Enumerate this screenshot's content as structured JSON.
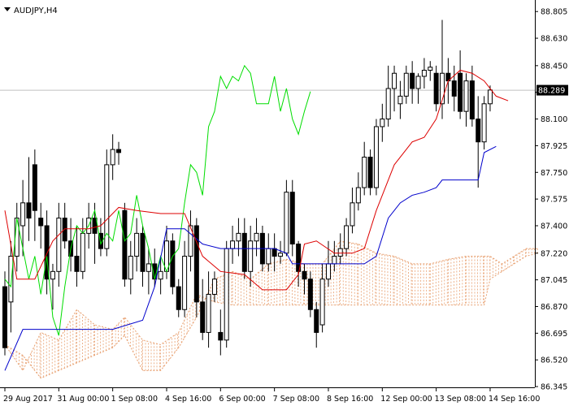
{
  "window": {
    "title": "AUDJPY,H4"
  },
  "chart_data": {
    "type": "candlestick",
    "symbol": "AUDJPY",
    "timeframe": "H4",
    "ylim": [
      86.34,
      88.87
    ],
    "y_ticks": [
      "88.805",
      "88.630",
      "88.450",
      "88.275",
      "88.100",
      "87.925",
      "87.750",
      "87.575",
      "87.400",
      "87.220",
      "87.045",
      "86.870",
      "86.695",
      "86.520",
      "86.345"
    ],
    "x_ticks": [
      {
        "label": "29 Aug 2017",
        "bar": 0
      },
      {
        "label": "31 Aug 00:00",
        "bar": 9
      },
      {
        "label": "1 Sep 08:00",
        "bar": 18
      },
      {
        "label": "4 Sep 16:00",
        "bar": 27
      },
      {
        "label": "6 Sep 00:00",
        "bar": 36
      },
      {
        "label": "7 Sep 08:00",
        "bar": 45
      },
      {
        "label": "8 Sep 16:00",
        "bar": 54
      },
      {
        "label": "12 Sep 00:00",
        "bar": 63
      },
      {
        "label": "13 Sep 08:00",
        "bar": 72
      },
      {
        "label": "14 Sep 16:00",
        "bar": 81
      }
    ],
    "current_price": "88.289",
    "current_price_value": 88.289,
    "colors": {
      "tenkan": "#dd0000",
      "kijun": "#0000cc",
      "chikou": "#00dd00",
      "cloud": "#e8a070",
      "candle": "#000000",
      "price_line": "#c0c0c0"
    },
    "candles": [
      [
        87.0,
        87.1,
        86.55,
        86.6
      ],
      [
        86.9,
        87.3,
        86.7,
        87.2
      ],
      [
        87.2,
        87.55,
        87.1,
        87.45
      ],
      [
        87.4,
        87.7,
        87.2,
        87.55
      ],
      [
        87.55,
        87.85,
        87.3,
        87.45
      ],
      [
        87.8,
        87.9,
        87.3,
        87.5
      ],
      [
        87.45,
        87.55,
        87.25,
        87.4
      ],
      [
        87.4,
        87.5,
        86.95,
        87.05
      ],
      [
        87.05,
        87.15,
        86.85,
        87.1
      ],
      [
        87.1,
        87.55,
        87.0,
        87.45
      ],
      [
        87.45,
        87.55,
        87.25,
        87.3
      ],
      [
        87.3,
        87.45,
        87.1,
        87.2
      ],
      [
        87.2,
        87.4,
        87.0,
        87.1
      ],
      [
        87.1,
        87.45,
        87.05,
        87.35
      ],
      [
        87.35,
        87.55,
        87.25,
        87.45
      ],
      [
        87.45,
        87.55,
        87.15,
        87.35
      ],
      [
        87.35,
        87.45,
        87.2,
        87.25
      ],
      [
        87.25,
        87.9,
        87.2,
        87.8
      ],
      [
        87.8,
        88.0,
        87.7,
        87.9
      ],
      [
        87.9,
        87.95,
        87.8,
        87.88
      ],
      [
        87.5,
        87.55,
        87.0,
        87.05
      ],
      [
        87.05,
        87.3,
        86.95,
        87.2
      ],
      [
        87.2,
        87.45,
        87.1,
        87.35
      ],
      [
        87.35,
        87.4,
        87.0,
        87.1
      ],
      [
        87.1,
        87.25,
        86.95,
        87.15
      ],
      [
        87.15,
        87.25,
        87.0,
        87.05
      ],
      [
        87.05,
        87.2,
        86.95,
        87.1
      ],
      [
        87.1,
        87.4,
        87.05,
        87.3
      ],
      [
        87.3,
        87.35,
        86.95,
        87.0
      ],
      [
        87.0,
        87.05,
        86.8,
        86.85
      ],
      [
        86.85,
        87.3,
        86.8,
        87.2
      ],
      [
        87.2,
        87.5,
        87.1,
        87.4
      ],
      [
        87.4,
        87.45,
        86.8,
        86.9
      ],
      [
        86.9,
        87.05,
        86.65,
        86.7
      ],
      [
        86.7,
        87.1,
        86.6,
        86.95
      ],
      [
        86.95,
        87.1,
        86.9,
        87.05
      ],
      [
        86.7,
        86.85,
        86.55,
        86.65
      ],
      [
        86.65,
        87.3,
        86.6,
        87.25
      ],
      [
        87.25,
        87.4,
        87.15,
        87.3
      ],
      [
        87.3,
        87.45,
        87.2,
        87.35
      ],
      [
        87.35,
        87.45,
        87.05,
        87.1
      ],
      [
        87.1,
        87.4,
        87.0,
        87.3
      ],
      [
        87.3,
        87.45,
        87.2,
        87.35
      ],
      [
        87.35,
        87.4,
        87.1,
        87.15
      ],
      [
        87.15,
        87.35,
        87.1,
        87.25
      ],
      [
        87.25,
        87.35,
        87.1,
        87.2
      ],
      [
        87.2,
        87.3,
        87.15,
        87.22
      ],
      [
        87.22,
        87.7,
        87.2,
        87.62
      ],
      [
        87.62,
        87.7,
        87.2,
        87.28
      ],
      [
        87.28,
        87.3,
        87.0,
        87.1
      ],
      [
        87.1,
        87.15,
        86.95,
        87.05
      ],
      [
        87.05,
        87.1,
        86.8,
        86.85
      ],
      [
        86.85,
        86.9,
        86.6,
        86.7
      ],
      [
        86.75,
        87.15,
        86.7,
        87.05
      ],
      [
        87.05,
        87.3,
        87.0,
        87.15
      ],
      [
        87.15,
        87.3,
        87.1,
        87.2
      ],
      [
        87.2,
        87.35,
        87.15,
        87.25
      ],
      [
        87.25,
        87.45,
        87.2,
        87.4
      ],
      [
        87.4,
        87.65,
        87.35,
        87.55
      ],
      [
        87.55,
        87.75,
        87.5,
        87.65
      ],
      [
        87.65,
        87.95,
        87.6,
        87.85
      ],
      [
        87.85,
        87.9,
        87.6,
        87.65
      ],
      [
        87.65,
        88.1,
        87.6,
        88.05
      ],
      [
        88.05,
        88.2,
        87.95,
        88.1
      ],
      [
        88.1,
        88.45,
        88.05,
        88.3
      ],
      [
        88.3,
        88.45,
        88.15,
        88.4
      ],
      [
        88.2,
        88.35,
        88.1,
        88.25
      ],
      [
        88.25,
        88.45,
        88.2,
        88.4
      ],
      [
        88.4,
        88.48,
        88.2,
        88.3
      ],
      [
        88.3,
        88.4,
        88.2,
        88.38
      ],
      [
        88.38,
        88.5,
        88.3,
        88.42
      ],
      [
        88.42,
        88.48,
        88.35,
        88.44
      ],
      [
        88.4,
        88.45,
        88.15,
        88.2
      ],
      [
        88.2,
        88.75,
        88.1,
        88.4
      ],
      [
        88.4,
        88.5,
        88.2,
        88.35
      ],
      [
        88.35,
        88.45,
        88.15,
        88.25
      ],
      [
        88.4,
        88.55,
        88.1,
        88.15
      ],
      [
        88.15,
        88.4,
        88.05,
        88.35
      ],
      [
        88.35,
        88.45,
        88.05,
        88.1
      ],
      [
        88.1,
        88.25,
        87.65,
        87.95
      ],
      [
        87.95,
        88.25,
        87.9,
        88.2
      ],
      [
        88.2,
        88.32,
        88.15,
        88.29
      ]
    ],
    "tenkan": [
      [
        0,
        87.5
      ],
      [
        2,
        87.05
      ],
      [
        5,
        87.05
      ],
      [
        8,
        87.3
      ],
      [
        10,
        87.38
      ],
      [
        14,
        87.38
      ],
      [
        16,
        87.4
      ],
      [
        19,
        87.52
      ],
      [
        22,
        87.5
      ],
      [
        26,
        87.48
      ],
      [
        30,
        87.48
      ],
      [
        33,
        87.2
      ],
      [
        36,
        87.1
      ],
      [
        40,
        87.08
      ],
      [
        43,
        86.98
      ],
      [
        47,
        86.98
      ],
      [
        49,
        87.08
      ],
      [
        50,
        87.28
      ],
      [
        52,
        87.3
      ],
      [
        55,
        87.22
      ],
      [
        58,
        87.22
      ],
      [
        60,
        87.25
      ],
      [
        62,
        87.5
      ],
      [
        65,
        87.8
      ],
      [
        68,
        87.95
      ],
      [
        70,
        87.98
      ],
      [
        72,
        88.1
      ],
      [
        74,
        88.35
      ],
      [
        76,
        88.42
      ],
      [
        78,
        88.4
      ],
      [
        80,
        88.35
      ],
      [
        82,
        88.25
      ],
      [
        84,
        88.22
      ]
    ],
    "kijun": [
      [
        0,
        86.45
      ],
      [
        3,
        86.72
      ],
      [
        6,
        86.72
      ],
      [
        18,
        86.72
      ],
      [
        23,
        86.78
      ],
      [
        25,
        87.0
      ],
      [
        27,
        87.38
      ],
      [
        30,
        87.38
      ],
      [
        33,
        87.28
      ],
      [
        36,
        87.25
      ],
      [
        45,
        87.25
      ],
      [
        47,
        87.22
      ],
      [
        48,
        87.15
      ],
      [
        55,
        87.15
      ],
      [
        58,
        87.15
      ],
      [
        60,
        87.15
      ],
      [
        62,
        87.2
      ],
      [
        64,
        87.45
      ],
      [
        66,
        87.55
      ],
      [
        68,
        87.6
      ],
      [
        70,
        87.62
      ],
      [
        72,
        87.65
      ],
      [
        73,
        87.7
      ],
      [
        79,
        87.7
      ],
      [
        80,
        87.88
      ],
      [
        82,
        87.92
      ]
    ],
    "chikou": [
      [
        0,
        87.05
      ],
      [
        1,
        87.0
      ],
      [
        2,
        87.45
      ],
      [
        3,
        87.25
      ],
      [
        4,
        87.05
      ],
      [
        5,
        87.2
      ],
      [
        6,
        86.95
      ],
      [
        7,
        87.2
      ],
      [
        8,
        86.8
      ],
      [
        9,
        86.68
      ],
      [
        10,
        87.0
      ],
      [
        11,
        87.25
      ],
      [
        12,
        87.4
      ],
      [
        13,
        87.35
      ],
      [
        14,
        87.4
      ],
      [
        15,
        87.5
      ],
      [
        16,
        87.28
      ],
      [
        17,
        87.35
      ],
      [
        18,
        87.3
      ],
      [
        19,
        87.5
      ],
      [
        20,
        87.3
      ],
      [
        21,
        87.35
      ],
      [
        22,
        87.6
      ],
      [
        23,
        87.4
      ],
      [
        24,
        87.25
      ],
      [
        25,
        87.05
      ],
      [
        26,
        87.2
      ],
      [
        27,
        87.1
      ],
      [
        28,
        87.2
      ],
      [
        29,
        87.25
      ],
      [
        30,
        87.55
      ],
      [
        31,
        87.8
      ],
      [
        32,
        87.75
      ],
      [
        33,
        87.6
      ],
      [
        34,
        88.05
      ],
      [
        35,
        88.15
      ],
      [
        36,
        88.38
      ],
      [
        37,
        88.3
      ],
      [
        38,
        88.38
      ],
      [
        39,
        88.35
      ],
      [
        40,
        88.45
      ],
      [
        41,
        88.4
      ],
      [
        42,
        88.2
      ],
      [
        43,
        88.2
      ],
      [
        44,
        88.2
      ],
      [
        45,
        88.38
      ],
      [
        46,
        88.15
      ],
      [
        47,
        88.3
      ],
      [
        48,
        88.1
      ],
      [
        49,
        88.0
      ],
      [
        50,
        88.15
      ],
      [
        51,
        88.28
      ]
    ],
    "cloud": [
      [
        0,
        86.62,
        86.62
      ],
      [
        3,
        86.55,
        86.45
      ],
      [
        6,
        86.4,
        86.7
      ],
      [
        9,
        86.45,
        86.65
      ],
      [
        12,
        86.5,
        86.85
      ],
      [
        15,
        86.55,
        86.75
      ],
      [
        18,
        86.6,
        86.72
      ],
      [
        20,
        86.68,
        86.8
      ],
      [
        23,
        86.45,
        86.65
      ],
      [
        26,
        86.45,
        86.62
      ],
      [
        29,
        86.6,
        86.7
      ],
      [
        32,
        86.8,
        86.95
      ],
      [
        35,
        87.05,
        86.9
      ],
      [
        38,
        87.1,
        86.88
      ],
      [
        41,
        87.05,
        86.88
      ],
      [
        44,
        87.15,
        86.88
      ],
      [
        47,
        87.18,
        86.88
      ],
      [
        50,
        87.15,
        86.88
      ],
      [
        53,
        87.15,
        86.88
      ],
      [
        56,
        87.3,
        86.88
      ],
      [
        59,
        87.28,
        86.88
      ],
      [
        62,
        87.22,
        86.88
      ],
      [
        65,
        87.2,
        86.88
      ],
      [
        68,
        87.15,
        86.88
      ],
      [
        71,
        87.15,
        86.88
      ],
      [
        74,
        87.18,
        86.88
      ],
      [
        77,
        87.2,
        86.88
      ],
      [
        80,
        87.2,
        86.88
      ],
      [
        81,
        87.2,
        87.05
      ],
      [
        83,
        87.15,
        87.1
      ],
      [
        85,
        87.2,
        87.15
      ],
      [
        87,
        87.25,
        87.2
      ],
      [
        89,
        87.25,
        87.22
      ]
    ]
  }
}
